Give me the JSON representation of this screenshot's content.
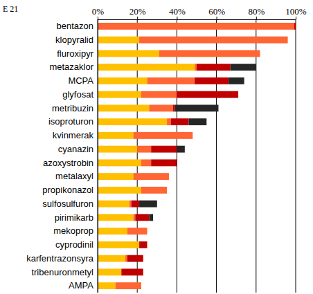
{
  "chart_data": {
    "type": "bar",
    "title": "E 21",
    "orientation": "horizontal",
    "stacked": true,
    "grid": true,
    "categories": [
      "bentazon",
      "klopyralid",
      "fluroxipyr",
      "metazaklor",
      "MCPA",
      "glyfosat",
      "metribuzin",
      "isoproturon",
      "kvinmerak",
      "cyanazin",
      "azoxystrobin",
      "metalaxyl",
      "propikonazol",
      "sulfosulfuron",
      "pirimikarb",
      "mekoprop",
      "cyprodinil",
      "karfentrazonsyra",
      "tribenuronmetyl",
      "AMPA"
    ],
    "series": [
      {
        "color": "#ffc000",
        "values": [
          0,
          21,
          31,
          49,
          25,
          22,
          26,
          35,
          18,
          20,
          22,
          18,
          22,
          16,
          18,
          15,
          21,
          14,
          12,
          9
        ]
      },
      {
        "color": "#ff6633",
        "values": [
          99.3,
          75,
          51,
          1,
          24,
          18,
          12,
          2,
          30,
          7,
          5,
          18,
          13,
          1,
          1,
          10,
          0,
          1,
          0,
          13
        ]
      },
      {
        "color": "#c00000",
        "values": [
          0.7,
          0,
          0,
          17,
          17,
          31,
          1,
          9,
          0,
          13,
          13,
          0,
          0,
          4,
          7,
          0,
          4,
          8,
          11,
          0
        ]
      },
      {
        "color": "#262626",
        "values": [
          0,
          0,
          0,
          13,
          8,
          0,
          22,
          9,
          0,
          4,
          0,
          0,
          0,
          9,
          2,
          0,
          0,
          0,
          0,
          0
        ]
      }
    ],
    "xlim": [
      0,
      100
    ],
    "xticks": [
      {
        "value": 0,
        "label": "0%"
      },
      {
        "value": 20,
        "label": "20%"
      },
      {
        "value": 40,
        "label": "40%"
      },
      {
        "value": 60,
        "label": "60%"
      },
      {
        "value": 80,
        "label": "80%"
      },
      {
        "value": 100,
        "label": "100%"
      }
    ]
  }
}
